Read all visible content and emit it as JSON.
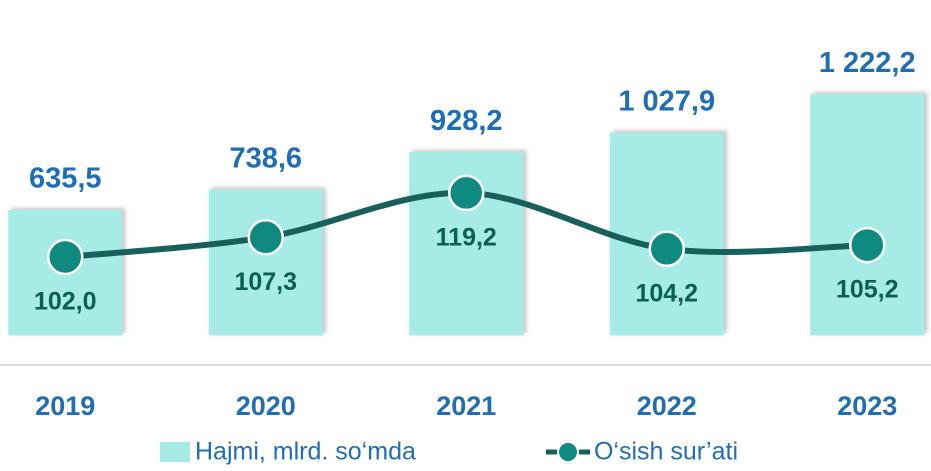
{
  "chart_data": {
    "type": "bar",
    "categories": [
      "2019",
      "2020",
      "2021",
      "2022",
      "2023"
    ],
    "series": [
      {
        "name": "Hajmi, mlrd. so‘mda",
        "type": "bar",
        "color": "#a6ebe5",
        "values": [
          635.5,
          738.6,
          928.2,
          1027.9,
          1222.2
        ],
        "value_labels": [
          "635,5",
          "738,6",
          "928,2",
          "1 027,9",
          "1 222,2"
        ]
      },
      {
        "name": "O‘sish sur’ati",
        "type": "line",
        "axis": "y2",
        "color": "#17605b",
        "marker_color": "#0f8a80",
        "values": [
          102.0,
          107.3,
          119.2,
          104.2,
          105.2
        ],
        "value_labels": [
          "102,0",
          "107,3",
          "119,2",
          "104,2",
          "105,2"
        ]
      }
    ],
    "ylim": [
      -150,
      1700
    ],
    "y2lim": [
      73,
      171
    ],
    "legend": "bottom"
  }
}
